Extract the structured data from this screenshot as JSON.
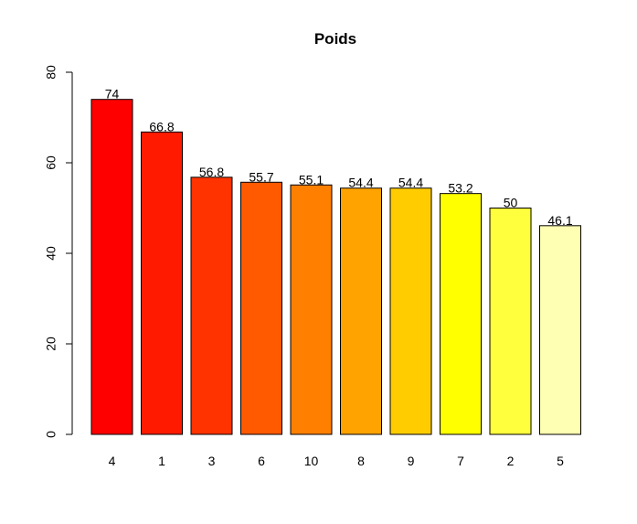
{
  "chart_data": {
    "type": "bar",
    "title": "Poids",
    "xlabel": "",
    "ylabel": "",
    "categories": [
      "4",
      "1",
      "3",
      "6",
      "10",
      "8",
      "9",
      "7",
      "2",
      "5"
    ],
    "values": [
      74,
      66.8,
      56.8,
      55.7,
      55.1,
      54.4,
      54.4,
      53.2,
      50,
      46.1
    ],
    "data_labels": [
      "74",
      "66.8",
      "56.8",
      "55.7",
      "55.1",
      "54.4",
      "54.4",
      "53.2",
      "50",
      "46.1"
    ],
    "colors": [
      "#FF0000",
      "#FF1A00",
      "#FF3300",
      "#FF5A00",
      "#FF7F00",
      "#FFA300",
      "#FFCC00",
      "#FFFF00",
      "#FFFF3D",
      "#FFFFB3"
    ],
    "ylim": [
      0,
      80
    ],
    "yticks": [
      0,
      20,
      40,
      60,
      80
    ],
    "grid": false,
    "legend": "none"
  }
}
